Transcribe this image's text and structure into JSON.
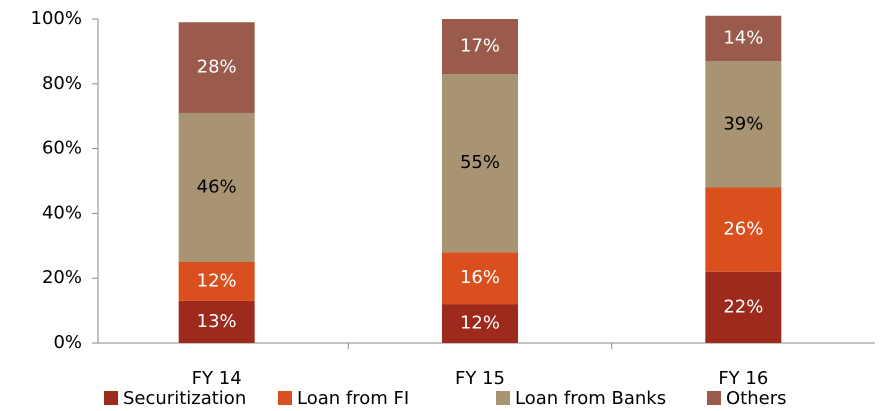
{
  "chart_data": {
    "type": "stacked-bar",
    "categories": [
      "FY 14",
      "FY 15",
      "FY 16"
    ],
    "series": [
      {
        "name": "Securitization",
        "color": "#9e2a1e",
        "values": [
          13,
          12,
          22
        ],
        "value_labels": [
          "13%",
          "12%",
          "22%"
        ]
      },
      {
        "name": "Loan from FI",
        "color": "#d9501e",
        "values": [
          12,
          16,
          26
        ],
        "value_labels": [
          "12%",
          "16%",
          "26%"
        ]
      },
      {
        "name": "Loan from Banks",
        "color": "#a89472",
        "values": [
          46,
          55,
          39
        ],
        "value_labels": [
          "46%",
          "55%",
          "39%"
        ]
      },
      {
        "name": "Others",
        "color": "#9a5b4d",
        "values": [
          28,
          17,
          14
        ],
        "value_labels": [
          "28%",
          "17%",
          "14%"
        ]
      }
    ],
    "ylim": [
      0,
      100
    ],
    "yticks": [
      {
        "value": 0,
        "label": "0%"
      },
      {
        "value": 20,
        "label": "20%"
      },
      {
        "value": 40,
        "label": "40%"
      },
      {
        "value": 60,
        "label": "60%"
      },
      {
        "value": 80,
        "label": "80%"
      },
      {
        "value": 100,
        "label": "100%"
      }
    ],
    "legend": "bottom"
  }
}
